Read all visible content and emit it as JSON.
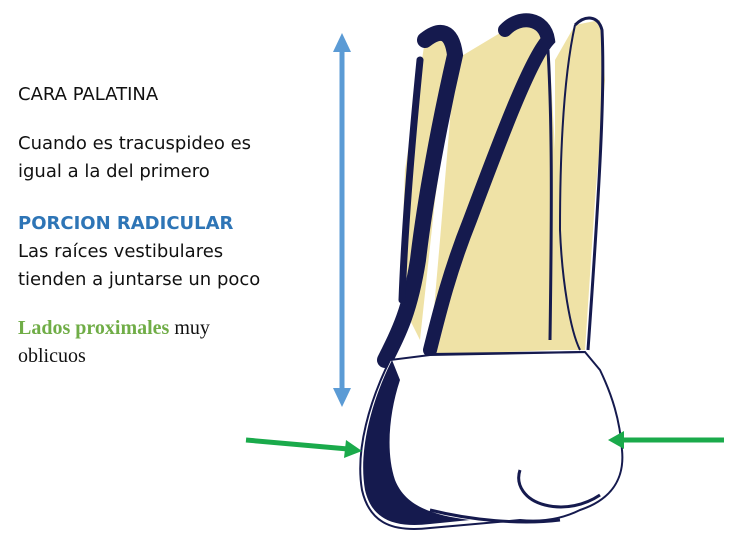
{
  "heading": "CARA PALATINA",
  "description_lines": [
    "Cuando es tracuspideo es",
    "igual  a la del primero"
  ],
  "section_title": "PORCION RADICULAR",
  "section_lines": [
    "Las raíces vestibulares",
    "tienden a juntarse un poco"
  ],
  "note_highlight": " Lados proximales",
  "note_rest_line1": " muy",
  "note_line2": "oblicuos",
  "colors": {
    "section_title": "#2e75b6",
    "highlight": "#70ad47",
    "height_arrow": "#5b9bd5",
    "proximal_arrows": "#1aaa4b",
    "root_fill": "#efe2a6",
    "tooth_outline": "#151a4e"
  },
  "icons": {
    "height_arrow": "double-arrow-vertical-icon",
    "left_arrow": "arrow-right-icon",
    "right_arrow": "arrow-left-icon"
  }
}
